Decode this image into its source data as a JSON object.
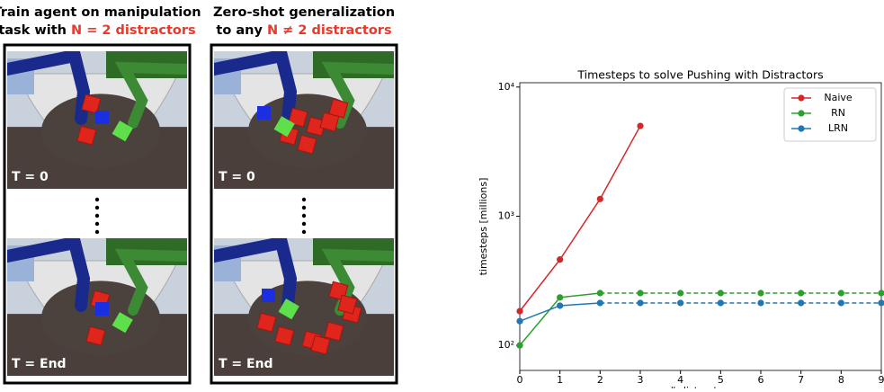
{
  "panels": [
    {
      "heading": [
        "Train agent on manipulation",
        "task with "
      ],
      "highlight": "N = 2 distractors",
      "frames": [
        "T = 0",
        "T = End"
      ]
    },
    {
      "heading": [
        "Zero-shot generalization",
        "to any "
      ],
      "highlight": "N ≠ 2 distractors",
      "frames": [
        "T = 0",
        "T = End"
      ]
    }
  ],
  "chart_data": {
    "type": "line",
    "title": "Timesteps to solve Pushing with Distractors",
    "x_label": "# distractors",
    "y_label": "timesteps [millions]",
    "x": [
      0,
      1,
      2,
      3,
      4,
      5,
      6,
      7,
      8,
      9
    ],
    "xlim": [
      0,
      9
    ],
    "xticks": [
      0,
      1,
      2,
      3,
      4,
      5,
      6,
      7,
      8,
      9
    ],
    "ylim": [
      64,
      10800
    ],
    "log_y": true,
    "yticks": [
      {
        "value": 100,
        "label": "10²"
      },
      {
        "value": 1000,
        "label": "10³"
      },
      {
        "value": 10000,
        "label": "10⁴"
      }
    ],
    "legend": "upper right",
    "series": [
      {
        "name": "Naive",
        "color": "#d62728",
        "values": [
          184,
          462,
          1360,
          5000,
          null,
          null,
          null,
          null,
          null,
          null
        ]
      },
      {
        "name": "RN",
        "color": "#2ca02c",
        "dashed_after": 2,
        "values": [
          100,
          235,
          254,
          254,
          254,
          254,
          254,
          254,
          254,
          254
        ]
      },
      {
        "name": "LRN",
        "color": "#1f77b4",
        "dashed_after": 2,
        "values": [
          154,
          203,
          213,
          213,
          213,
          213,
          213,
          213,
          213,
          213
        ]
      }
    ]
  }
}
